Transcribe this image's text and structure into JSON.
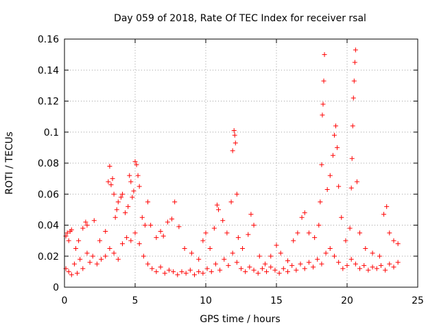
{
  "chart_data": {
    "type": "scatter",
    "title": "Day 059 of 2018, Rate Of TEC Index for receiver rsal",
    "xlabel": "GPS time / hours",
    "ylabel": "ROTI / TECUs",
    "xlim": [
      0,
      25
    ],
    "ylim": [
      0,
      0.16
    ],
    "xticks": [
      0,
      5,
      10,
      15,
      20,
      25
    ],
    "yticks": [
      0,
      0.02,
      0.04,
      0.06,
      0.08,
      0.1,
      0.12,
      0.14,
      0.16
    ],
    "xtick_labels": [
      "0",
      "5",
      "10",
      "15",
      "20",
      "25"
    ],
    "ytick_labels": [
      "0",
      "0.02",
      "0.04",
      "0.06",
      "0.08",
      "0.1",
      "0.12",
      "0.14",
      "0.16"
    ],
    "grid": true,
    "marker": "+",
    "color": "#ff0000",
    "series": [
      {
        "name": "ROTI",
        "points": [
          [
            0.1,
            0.033
          ],
          [
            0.2,
            0.035
          ],
          [
            0.3,
            0.03
          ],
          [
            0.4,
            0.036
          ],
          [
            0.5,
            0.037
          ],
          [
            0.8,
            0.025
          ],
          [
            1.0,
            0.03
          ],
          [
            1.3,
            0.038
          ],
          [
            1.5,
            0.042
          ],
          [
            1.6,
            0.04
          ],
          [
            2.1,
            0.043
          ],
          [
            2.5,
            0.03
          ],
          [
            2.9,
            0.036
          ],
          [
            3.1,
            0.068
          ],
          [
            3.2,
            0.078
          ],
          [
            3.3,
            0.066
          ],
          [
            3.4,
            0.07
          ],
          [
            3.5,
            0.06
          ],
          [
            3.6,
            0.045
          ],
          [
            3.7,
            0.05
          ],
          [
            3.8,
            0.055
          ],
          [
            4.0,
            0.058
          ],
          [
            4.1,
            0.06
          ],
          [
            4.3,
            0.048
          ],
          [
            4.5,
            0.052
          ],
          [
            4.6,
            0.072
          ],
          [
            4.7,
            0.068
          ],
          [
            4.8,
            0.058
          ],
          [
            4.9,
            0.062
          ],
          [
            5.0,
            0.081
          ],
          [
            5.1,
            0.079
          ],
          [
            5.2,
            0.072
          ],
          [
            5.3,
            0.065
          ],
          [
            5.5,
            0.045
          ],
          [
            5.7,
            0.04
          ],
          [
            5.9,
            0.055
          ],
          [
            6.1,
            0.04
          ],
          [
            6.5,
            0.032
          ],
          [
            6.8,
            0.036
          ],
          [
            7.0,
            0.033
          ],
          [
            7.3,
            0.042
          ],
          [
            7.6,
            0.044
          ],
          [
            7.8,
            0.055
          ],
          [
            8.1,
            0.039
          ],
          [
            8.5,
            0.025
          ],
          [
            9.0,
            0.022
          ],
          [
            9.5,
            0.018
          ],
          [
            9.8,
            0.03
          ],
          [
            10.0,
            0.035
          ],
          [
            10.3,
            0.025
          ],
          [
            10.6,
            0.038
          ],
          [
            10.8,
            0.053
          ],
          [
            10.9,
            0.05
          ],
          [
            11.2,
            0.043
          ],
          [
            11.5,
            0.035
          ],
          [
            11.8,
            0.055
          ],
          [
            11.9,
            0.088
          ],
          [
            12.0,
            0.101
          ],
          [
            12.05,
            0.098
          ],
          [
            12.1,
            0.093
          ],
          [
            12.2,
            0.06
          ],
          [
            12.3,
            0.032
          ],
          [
            12.6,
            0.025
          ],
          [
            13.0,
            0.034
          ],
          [
            13.2,
            0.047
          ],
          [
            13.4,
            0.04
          ],
          [
            13.8,
            0.02
          ],
          [
            14.2,
            0.015
          ],
          [
            14.6,
            0.02
          ],
          [
            15.0,
            0.027
          ],
          [
            15.3,
            0.022
          ],
          [
            15.8,
            0.017
          ],
          [
            16.2,
            0.03
          ],
          [
            16.5,
            0.035
          ],
          [
            16.8,
            0.045
          ],
          [
            17.0,
            0.048
          ],
          [
            17.3,
            0.035
          ],
          [
            17.7,
            0.032
          ],
          [
            18.0,
            0.04
          ],
          [
            18.1,
            0.055
          ],
          [
            18.2,
            0.079
          ],
          [
            18.25,
            0.111
          ],
          [
            18.3,
            0.118
          ],
          [
            18.35,
            0.133
          ],
          [
            18.4,
            0.15
          ],
          [
            18.6,
            0.063
          ],
          [
            18.8,
            0.072
          ],
          [
            19.0,
            0.085
          ],
          [
            19.1,
            0.098
          ],
          [
            19.2,
            0.104
          ],
          [
            19.3,
            0.09
          ],
          [
            19.4,
            0.065
          ],
          [
            19.6,
            0.045
          ],
          [
            19.9,
            0.03
          ],
          [
            20.2,
            0.038
          ],
          [
            20.3,
            0.064
          ],
          [
            20.35,
            0.083
          ],
          [
            20.4,
            0.104
          ],
          [
            20.45,
            0.122
          ],
          [
            20.5,
            0.133
          ],
          [
            20.55,
            0.145
          ],
          [
            20.6,
            0.153
          ],
          [
            20.7,
            0.068
          ],
          [
            20.9,
            0.035
          ],
          [
            21.3,
            0.025
          ],
          [
            21.8,
            0.022
          ],
          [
            22.3,
            0.02
          ],
          [
            22.6,
            0.047
          ],
          [
            22.8,
            0.052
          ],
          [
            23.0,
            0.035
          ],
          [
            23.3,
            0.03
          ],
          [
            23.6,
            0.028
          ],
          [
            0.1,
            0.012
          ],
          [
            0.3,
            0.01
          ],
          [
            0.5,
            0.008
          ],
          [
            0.7,
            0.015
          ],
          [
            0.9,
            0.009
          ],
          [
            1.1,
            0.018
          ],
          [
            1.3,
            0.012
          ],
          [
            1.6,
            0.022
          ],
          [
            1.8,
            0.016
          ],
          [
            2.0,
            0.02
          ],
          [
            2.3,
            0.015
          ],
          [
            2.6,
            0.018
          ],
          [
            2.9,
            0.02
          ],
          [
            3.2,
            0.025
          ],
          [
            3.5,
            0.022
          ],
          [
            3.8,
            0.018
          ],
          [
            4.1,
            0.028
          ],
          [
            4.4,
            0.032
          ],
          [
            4.7,
            0.03
          ],
          [
            5.0,
            0.035
          ],
          [
            5.3,
            0.028
          ],
          [
            5.6,
            0.02
          ],
          [
            5.9,
            0.015
          ],
          [
            6.2,
            0.012
          ],
          [
            6.5,
            0.01
          ],
          [
            6.8,
            0.013
          ],
          [
            7.1,
            0.009
          ],
          [
            7.4,
            0.011
          ],
          [
            7.7,
            0.01
          ],
          [
            8.0,
            0.008
          ],
          [
            8.3,
            0.01
          ],
          [
            8.6,
            0.009
          ],
          [
            8.9,
            0.011
          ],
          [
            9.2,
            0.008
          ],
          [
            9.5,
            0.01
          ],
          [
            9.8,
            0.009
          ],
          [
            10.1,
            0.012
          ],
          [
            10.4,
            0.01
          ],
          [
            10.7,
            0.015
          ],
          [
            11.0,
            0.011
          ],
          [
            11.3,
            0.018
          ],
          [
            11.6,
            0.014
          ],
          [
            11.9,
            0.022
          ],
          [
            12.2,
            0.016
          ],
          [
            12.5,
            0.012
          ],
          [
            12.8,
            0.01
          ],
          [
            13.1,
            0.013
          ],
          [
            13.4,
            0.011
          ],
          [
            13.7,
            0.009
          ],
          [
            14.0,
            0.012
          ],
          [
            14.3,
            0.01
          ],
          [
            14.6,
            0.013
          ],
          [
            14.9,
            0.011
          ],
          [
            15.2,
            0.009
          ],
          [
            15.5,
            0.012
          ],
          [
            15.8,
            0.01
          ],
          [
            16.1,
            0.014
          ],
          [
            16.4,
            0.011
          ],
          [
            16.7,
            0.015
          ],
          [
            17.0,
            0.012
          ],
          [
            17.3,
            0.016
          ],
          [
            17.6,
            0.013
          ],
          [
            17.9,
            0.018
          ],
          [
            18.2,
            0.015
          ],
          [
            18.5,
            0.022
          ],
          [
            18.8,
            0.025
          ],
          [
            19.1,
            0.02
          ],
          [
            19.4,
            0.016
          ],
          [
            19.7,
            0.012
          ],
          [
            20.0,
            0.014
          ],
          [
            20.3,
            0.018
          ],
          [
            20.6,
            0.015
          ],
          [
            20.9,
            0.012
          ],
          [
            21.2,
            0.014
          ],
          [
            21.5,
            0.011
          ],
          [
            21.8,
            0.013
          ],
          [
            22.1,
            0.012
          ],
          [
            22.4,
            0.014
          ],
          [
            22.7,
            0.011
          ],
          [
            23.0,
            0.015
          ],
          [
            23.3,
            0.013
          ],
          [
            23.6,
            0.016
          ]
        ]
      }
    ]
  }
}
